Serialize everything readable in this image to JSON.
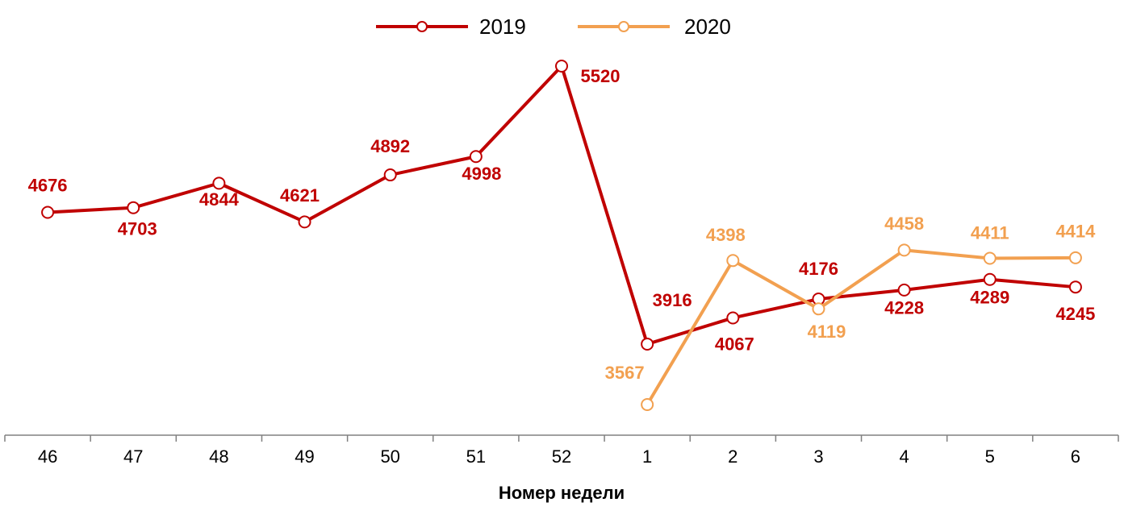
{
  "chart_data": {
    "type": "line",
    "x_label": "Номер недели",
    "categories": [
      "46",
      "47",
      "48",
      "49",
      "50",
      "51",
      "52",
      "1",
      "2",
      "3",
      "4",
      "5",
      "6"
    ],
    "series": [
      {
        "name": "2019",
        "color": "#c00000",
        "values": [
          4676,
          4703,
          4844,
          4621,
          4892,
          4998,
          5520,
          3916,
          4067,
          4176,
          4228,
          4289,
          4245
        ]
      },
      {
        "name": "2020",
        "color": "#f2a050",
        "values": [
          null,
          null,
          null,
          null,
          null,
          null,
          null,
          3567,
          4398,
          4119,
          4458,
          4411,
          4414
        ]
      }
    ],
    "legend": "top"
  }
}
